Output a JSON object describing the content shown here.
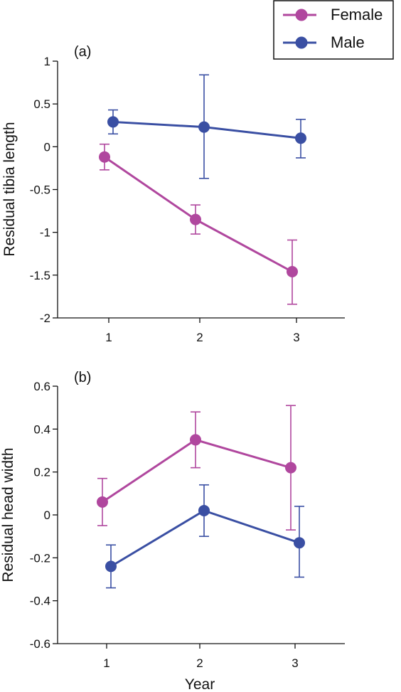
{
  "legend": {
    "items": [
      {
        "label": "Female",
        "color": "#b0479e"
      },
      {
        "label": "Male",
        "color": "#3a4fa3"
      }
    ],
    "placement": "top-right"
  },
  "chart_data": [
    {
      "type": "line",
      "panel_label": "(a)",
      "ylabel": "Residual tibia length",
      "xlabel": "",
      "x": [
        1,
        2,
        3
      ],
      "x_tick_labels": [
        "1",
        "2",
        "3"
      ],
      "ylim": [
        -2,
        1
      ],
      "y_ticks": [
        1,
        0.5,
        0,
        -0.5,
        -1,
        -1.5,
        -2
      ],
      "y_tick_labels": [
        "1",
        "0.5",
        "0",
        "-0.5",
        "-1",
        "-1.5",
        "-2"
      ],
      "grid": false,
      "series": [
        {
          "name": "Female",
          "color": "#b0479e",
          "values": [
            -0.12,
            -0.85,
            -1.46
          ],
          "err_low": [
            -0.27,
            -1.02,
            -1.84
          ],
          "err_high": [
            0.03,
            -0.68,
            -1.09
          ]
        },
        {
          "name": "Male",
          "color": "#3a4fa3",
          "values": [
            0.29,
            0.23,
            0.1
          ],
          "err_low": [
            0.15,
            -0.37,
            -0.13
          ],
          "err_high": [
            0.43,
            0.84,
            0.32
          ]
        }
      ]
    },
    {
      "type": "line",
      "panel_label": "(b)",
      "ylabel": "Residual head width",
      "xlabel": "Year",
      "x": [
        1,
        2,
        3
      ],
      "x_tick_labels": [
        "1",
        "2",
        "3"
      ],
      "ylim": [
        -0.6,
        0.6
      ],
      "y_ticks": [
        0.6,
        0.4,
        0.2,
        0,
        -0.2,
        -0.4,
        -0.6
      ],
      "y_tick_labels": [
        "0.6",
        "0.4",
        "0.2",
        "0",
        "-0.2",
        "-0.4",
        "-0.6"
      ],
      "grid": false,
      "series": [
        {
          "name": "Female",
          "color": "#b0479e",
          "values": [
            0.06,
            0.35,
            0.22
          ],
          "err_low": [
            -0.05,
            0.22,
            -0.07
          ],
          "err_high": [
            0.17,
            0.48,
            0.51
          ]
        },
        {
          "name": "Male",
          "color": "#3a4fa3",
          "values": [
            -0.24,
            0.02,
            -0.13
          ],
          "err_low": [
            -0.34,
            -0.1,
            -0.29
          ],
          "err_high": [
            -0.14,
            0.14,
            0.04
          ]
        }
      ]
    }
  ]
}
